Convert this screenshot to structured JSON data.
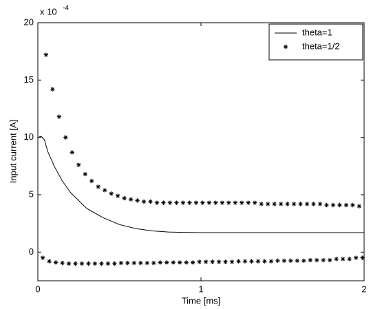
{
  "chart_data": {
    "type": "line",
    "xlabel": "Time [ms]",
    "ylabel": "Input current [A]",
    "y_multiplier": {
      "base": "x 10",
      "exponent": "-4"
    },
    "xlim": [
      0,
      2
    ],
    "xticks": [
      0,
      1,
      2
    ],
    "ylim": [
      -2.5,
      20
    ],
    "yticks": [
      0,
      5,
      10,
      15,
      20
    ],
    "grid": false,
    "legend": "upper right",
    "series": [
      {
        "name": "theta=1",
        "color": "#000000",
        "style": "line",
        "x": [
          0,
          0.02,
          0.04,
          0.06,
          0.1,
          0.15,
          0.2,
          0.3,
          0.4,
          0.5,
          0.6,
          0.7,
          0.8,
          1.0,
          2.0
        ],
        "values": [
          10,
          10.1,
          9.8,
          8.8,
          7.5,
          6.2,
          5.2,
          3.8,
          3.0,
          2.4,
          2.05,
          1.85,
          1.75,
          1.7,
          1.7
        ]
      },
      {
        "name": "theta=1/2",
        "color": "#000000",
        "style": "marker",
        "x": [
          0.03,
          0.05,
          0.07,
          0.09,
          0.11,
          0.13,
          0.15,
          0.17,
          0.19,
          0.21,
          0.23,
          0.25,
          0.27,
          0.29,
          0.31,
          0.33,
          0.35,
          0.37,
          0.39,
          0.41,
          0.43,
          0.45,
          0.47,
          0.49,
          0.51,
          0.53,
          0.55,
          0.57,
          0.59,
          0.61,
          0.63,
          0.65,
          0.67,
          0.69,
          0.71,
          0.73,
          0.75,
          0.77,
          0.79,
          0.81,
          0.83,
          0.85,
          0.87,
          0.89,
          0.91,
          0.93,
          0.95,
          0.97,
          0.99,
          1.01,
          1.03,
          1.05,
          1.07,
          1.09,
          1.11,
          1.13,
          1.15,
          1.17,
          1.19,
          1.21,
          1.23,
          1.25,
          1.27,
          1.29,
          1.31,
          1.33,
          1.35,
          1.37,
          1.39,
          1.41,
          1.43,
          1.45,
          1.47,
          1.49,
          1.51,
          1.53,
          1.55,
          1.57,
          1.59,
          1.61,
          1.63,
          1.65,
          1.67,
          1.69,
          1.71,
          1.73,
          1.75,
          1.77,
          1.79,
          1.81,
          1.83,
          1.85,
          1.87,
          1.89,
          1.91,
          1.93,
          1.95,
          1.97,
          1.99
        ],
        "values": [
          -0.5,
          17.2,
          -0.8,
          14.2,
          -0.9,
          11.8,
          -0.95,
          10.0,
          -1.0,
          8.7,
          -1.0,
          7.6,
          -1.0,
          6.8,
          -1.0,
          6.2,
          -1.0,
          5.7,
          -1.0,
          5.4,
          -1.0,
          5.1,
          -1.0,
          4.9,
          -0.95,
          4.7,
          -0.95,
          4.6,
          -0.95,
          4.5,
          -0.95,
          4.4,
          -0.95,
          4.4,
          -0.95,
          4.3,
          -0.9,
          4.3,
          -0.9,
          4.3,
          -0.9,
          4.3,
          -0.9,
          4.3,
          -0.9,
          4.3,
          -0.9,
          4.3,
          -0.85,
          4.3,
          -0.85,
          4.3,
          -0.85,
          4.3,
          -0.85,
          4.3,
          -0.85,
          4.3,
          -0.85,
          4.3,
          -0.8,
          4.3,
          -0.8,
          4.3,
          -0.8,
          4.3,
          -0.8,
          4.2,
          -0.8,
          4.2,
          -0.8,
          4.2,
          -0.75,
          4.2,
          -0.75,
          4.2,
          -0.75,
          4.2,
          -0.75,
          4.2,
          -0.75,
          4.2,
          -0.7,
          4.2,
          -0.7,
          4.2,
          -0.7,
          4.1,
          -0.7,
          4.1,
          -0.6,
          4.1,
          -0.6,
          4.1,
          -0.6,
          4.1,
          -0.5,
          4.0,
          -0.5
        ]
      }
    ]
  }
}
